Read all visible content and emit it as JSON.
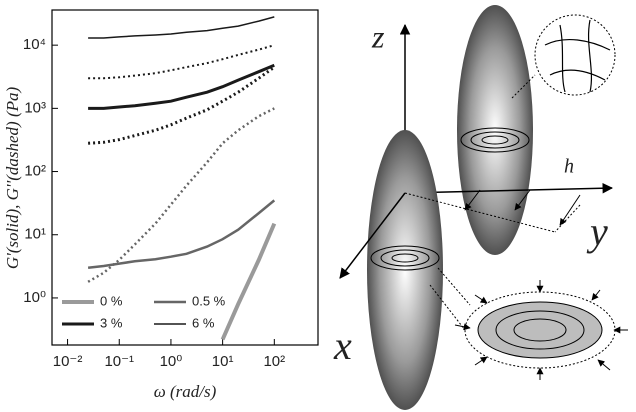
{
  "chart_data": {
    "type": "line",
    "log_x": true,
    "log_y": true,
    "x_label": "ω (rad/s)",
    "y_label": "G'(solid), G''(dashed) (Pa)",
    "x": [
      0.025,
      0.05,
      0.1,
      0.2,
      0.5,
      1,
      2,
      5,
      10,
      20,
      50,
      100
    ],
    "xlim": [
      0.005,
      700
    ],
    "xticks": [
      {
        "value": 0.01,
        "label": "10⁻²"
      },
      {
        "value": 0.1,
        "label": "10⁻¹"
      },
      {
        "value": 1,
        "label": "10⁰"
      },
      {
        "value": 10,
        "label": "10¹"
      },
      {
        "value": 100,
        "label": "10²"
      }
    ],
    "ylim": [
      0.18,
      36000
    ],
    "yticks": [
      {
        "value": 1,
        "label": "10⁰"
      },
      {
        "value": 10,
        "label": "10¹"
      },
      {
        "value": 100,
        "label": "10²"
      },
      {
        "value": 1000,
        "label": "10³"
      },
      {
        "value": 10000,
        "label": "10⁴"
      }
    ],
    "series": [
      {
        "name": "0 %",
        "color": "#9a9a9a",
        "width": 4,
        "values": [
          null,
          null,
          null,
          null,
          null,
          null,
          null,
          null,
          0.22,
          0.8,
          4,
          15
        ]
      },
      {
        "name": "0.5 %",
        "color": "#666666",
        "width": 2.5,
        "values": [
          3,
          3.2,
          3.5,
          3.8,
          4.1,
          4.5,
          5,
          6.5,
          8.5,
          12,
          22,
          35
        ],
        "dashed_values": [
          1.8,
          2.5,
          4,
          7,
          15,
          30,
          60,
          140,
          280,
          450,
          750,
          1000
        ]
      },
      {
        "name": "3 %",
        "color": "#1a1a1a",
        "width": 3,
        "values": [
          1000,
          1000,
          1050,
          1100,
          1200,
          1300,
          1500,
          1800,
          2200,
          2800,
          3800,
          4800
        ],
        "dashed_values": [
          280,
          290,
          320,
          370,
          450,
          550,
          700,
          950,
          1300,
          1800,
          3000,
          4500
        ]
      },
      {
        "name": "6 %",
        "color": "#1a1a1a",
        "width": 1.5,
        "values": [
          13000,
          13000,
          13500,
          14000,
          14500,
          15000,
          16000,
          17000,
          18500,
          20000,
          24000,
          28000
        ],
        "dashed_values": [
          3000,
          3000,
          3100,
          3300,
          3600,
          4000,
          4500,
          5200,
          6000,
          7000,
          8500,
          10000
        ]
      }
    ]
  },
  "diagram": {
    "z_label": "z",
    "x_label": "x",
    "y_label": "y",
    "h_label": "h"
  }
}
